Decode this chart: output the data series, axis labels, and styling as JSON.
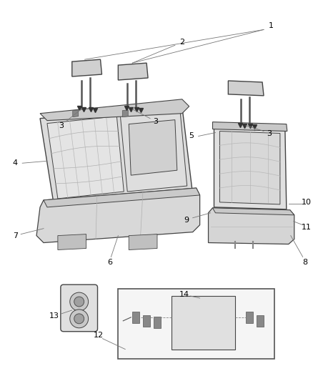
{
  "background_color": "#ffffff",
  "figure_width": 4.38,
  "figure_height": 5.33,
  "dpi": 100,
  "label_fontsize": 8,
  "line_color": "#777777",
  "text_color": "#000000",
  "edge_color": "#444444",
  "fill_light": "#e8e8e8",
  "fill_mid": "#d8d8d8",
  "fill_dark": "#c8c8c8"
}
